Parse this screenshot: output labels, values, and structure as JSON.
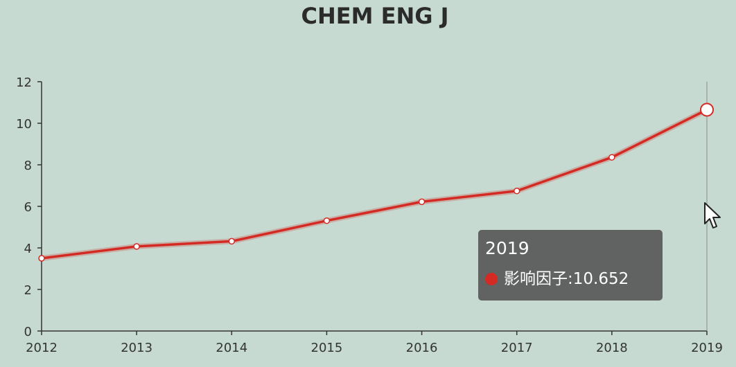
{
  "chart_data": {
    "type": "line",
    "title": "CHEM ENG J",
    "categories": [
      "2012",
      "2013",
      "2014",
      "2015",
      "2016",
      "2017",
      "2018",
      "2019"
    ],
    "series": [
      {
        "name": "影响因子",
        "values": [
          3.5,
          4.07,
          4.32,
          5.31,
          6.22,
          6.74,
          8.36,
          10.652
        ]
      }
    ],
    "ylim": [
      0,
      12
    ],
    "yticks": [
      "0",
      "2",
      "4",
      "6",
      "8",
      "10",
      "12"
    ],
    "xlabel": "",
    "ylabel": "",
    "grid": false,
    "colors": {
      "line": "#d42a24",
      "background": "#c6dad1",
      "axis": "#333333"
    },
    "highlight_index": 7,
    "tooltip": {
      "title": "2019",
      "label": "影响因子",
      "value": "10.652"
    }
  },
  "cursor_icon": "mouse-pointer-icon"
}
